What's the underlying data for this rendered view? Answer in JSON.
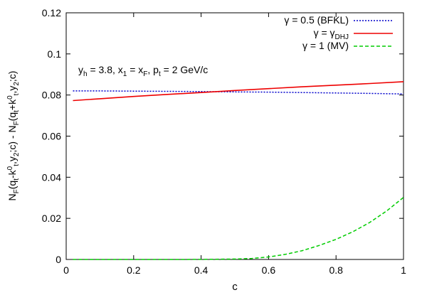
{
  "chart_data": {
    "type": "line",
    "title": "",
    "xlabel": "c",
    "ylabel_parts": {
      "a": "N",
      "a_sub": "F",
      "b": "(q",
      "b_sub": "t",
      "c": "-k",
      "c_sup": "0",
      "c_sub": "t",
      "d": ",y",
      "d_sub": "2",
      "e": ";c) - N",
      "e_sub": "F",
      "f": "(q",
      "f_sub": "t",
      "g": "+k",
      "g_sup": "0",
      "g_sub": "t",
      "h": ",y",
      "h_sub": "2",
      "i": ";c)"
    },
    "xlim": [
      0,
      1
    ],
    "ylim": [
      0,
      0.12
    ],
    "xticks": [
      "0",
      "0.2",
      "0.4",
      "0.6",
      "0.8",
      "1"
    ],
    "yticks": [
      "0",
      "0.02",
      "0.04",
      "0.06",
      "0.08",
      "0.1",
      "0.12"
    ],
    "grid": false,
    "legend_position": "top-right",
    "annotation_parts": {
      "y": "y",
      "y_sub": "h",
      "y_rest": " = 3.8,  x",
      "x1_sub": "1",
      "x_mid": " = x",
      "xF_sub": "F",
      "p_pre": ",  p",
      "pt_sub": "t",
      "p_rest": " = 2 GeV/c"
    },
    "series": [
      {
        "legend_main": "γ = 0.5 (BFKL)",
        "legend_sub": "",
        "color": "#0000cc",
        "dash": "dotted",
        "x": [
          0.02,
          0.1,
          0.2,
          0.3,
          0.4,
          0.5,
          0.6,
          0.7,
          0.8,
          0.9,
          1.0
        ],
        "y": [
          0.082,
          0.082,
          0.0819,
          0.0818,
          0.0817,
          0.0815,
          0.0814,
          0.0812,
          0.081,
          0.0808,
          0.0805
        ]
      },
      {
        "legend_main": "γ = γ",
        "legend_sub": "DHJ",
        "color": "#ee0000",
        "dash": "solid",
        "x": [
          0.02,
          0.1,
          0.2,
          0.3,
          0.4,
          0.5,
          0.6,
          0.7,
          0.8,
          0.9,
          1.0
        ],
        "y": [
          0.0773,
          0.0782,
          0.0793,
          0.0803,
          0.0812,
          0.0822,
          0.0831,
          0.084,
          0.0848,
          0.0856,
          0.0865
        ]
      },
      {
        "legend_main": "γ = 1 (MV)",
        "legend_sub": "",
        "color": "#00cc00",
        "dash": "dashed",
        "x": [
          0.02,
          0.1,
          0.2,
          0.3,
          0.4,
          0.5,
          0.55,
          0.6,
          0.65,
          0.7,
          0.75,
          0.8,
          0.85,
          0.9,
          0.95,
          1.0
        ],
        "y": [
          0.0,
          0.0,
          0.0,
          0.0,
          5e-05,
          0.0002,
          0.0005,
          0.0012,
          0.0025,
          0.0043,
          0.0068,
          0.0098,
          0.0135,
          0.018,
          0.0236,
          0.0302
        ]
      }
    ]
  }
}
